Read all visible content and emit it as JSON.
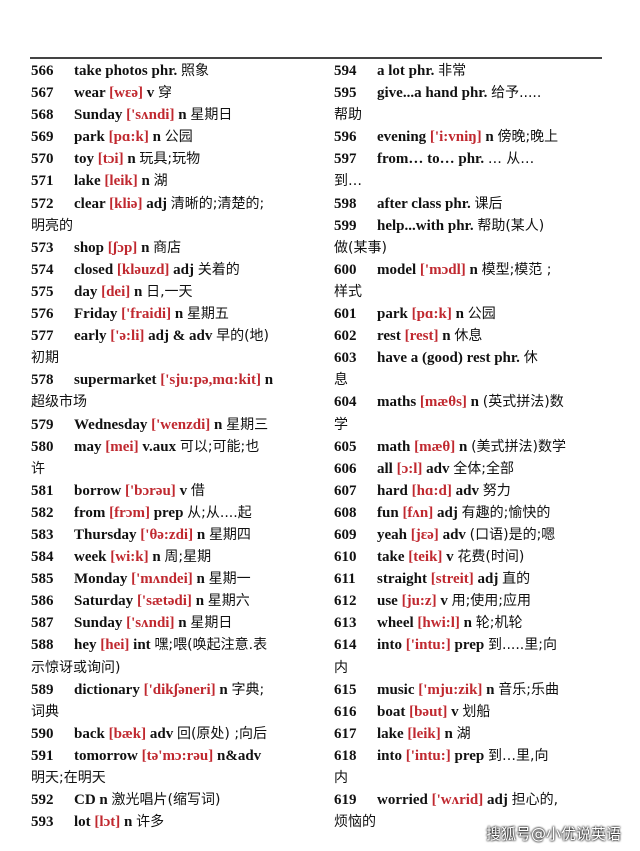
{
  "columns": {
    "left": [
      {
        "num": "566",
        "word": "take photos",
        "ipa": "",
        "pos": "phr.",
        "meaning": "照象"
      },
      {
        "num": "567",
        "word": "wear",
        "ipa": "[wɛə]",
        "pos": "v",
        "meaning": "穿"
      },
      {
        "num": "568",
        "word": "Sunday",
        "ipa": "['sʌndi]",
        "pos": "n",
        "meaning": "星期日"
      },
      {
        "num": "569",
        "word": "park",
        "ipa": "[pɑ:k]",
        "pos": "n",
        "meaning": "公园"
      },
      {
        "num": "570",
        "word": "toy",
        "ipa": "[tɔi]",
        "pos": "n",
        "meaning": "玩具;玩物"
      },
      {
        "num": "571",
        "word": "lake",
        "ipa": "[leik]",
        "pos": "n",
        "meaning": "湖"
      },
      {
        "num": "572",
        "word": "clear",
        "ipa": "[kliə]",
        "pos": "adj",
        "meaning": "清晰的;清楚的;",
        "cont": "明亮的"
      },
      {
        "num": "573",
        "word": "shop",
        "ipa": "[ʃɔp]",
        "pos": "n",
        "meaning": "商店"
      },
      {
        "num": "574",
        "word": "closed",
        "ipa": "[kləuzd]",
        "pos": "adj",
        "meaning": "关着的"
      },
      {
        "num": "575",
        "word": "day",
        "ipa": "[dei]",
        "pos": "n",
        "meaning": "日,一天"
      },
      {
        "num": "576",
        "word": "Friday",
        "ipa": "['fraidi]",
        "pos": "n",
        "meaning": "星期五"
      },
      {
        "num": "577",
        "word": "early",
        "ipa": "['ə:li]",
        "pos": "adj & adv",
        "meaning": "早的(地)",
        "cont": "初期"
      },
      {
        "num": "578",
        "word": "supermarket",
        "ipa": "['sju:pə,mɑ:kit]",
        "pos": "n",
        "meaning": "",
        "cont": "超级市场"
      },
      {
        "num": "579",
        "word": "Wednesday",
        "ipa": "['wenzdi]",
        "pos": "n",
        "meaning": "星期三"
      },
      {
        "num": "580",
        "word": "may",
        "ipa": "[mei]",
        "pos": "v.aux",
        "meaning": "可以;可能;也",
        "cont": "许"
      },
      {
        "num": "581",
        "word": "borrow",
        "ipa": "['bɔrəu]",
        "pos": "v",
        "meaning": "借"
      },
      {
        "num": "582",
        "word": "from",
        "ipa": "[frɔm]",
        "pos": "prep",
        "meaning": "从;从....起"
      },
      {
        "num": "583",
        "word": "Thursday",
        "ipa": "['θə:zdi]",
        "pos": "n",
        "meaning": "星期四"
      },
      {
        "num": "584",
        "word": "week",
        "ipa": "[wi:k]",
        "pos": "n",
        "meaning": "周;星期"
      },
      {
        "num": "585",
        "word": "Monday",
        "ipa": "['mʌndei]",
        "pos": "n",
        "meaning": "星期一"
      },
      {
        "num": "586",
        "word": "Saturday",
        "ipa": "['sætədi]",
        "pos": "n",
        "meaning": "星期六"
      },
      {
        "num": "587",
        "word": "Sunday",
        "ipa": "['sʌndi]",
        "pos": "n",
        "meaning": "星期日"
      },
      {
        "num": "588",
        "word": "hey",
        "ipa": "[hei]",
        "pos": "int",
        "meaning": "嘿;喂(唤起注意.表",
        "cont": "示惊讶或询问)"
      },
      {
        "num": "589",
        "word": "dictionary",
        "ipa": "['dikʃəneri]",
        "pos": "n",
        "meaning": "字典;",
        "cont": "词典"
      },
      {
        "num": "590",
        "word": "back",
        "ipa": "[bæk]",
        "pos": "adv",
        "meaning": "回(原处) ;向后"
      },
      {
        "num": "591",
        "word": "tomorrow",
        "ipa": "[tə'mɔ:rəu]",
        "pos": "n&adv",
        "meaning": "",
        "cont": "明天;在明天"
      },
      {
        "num": "592",
        "word": "CD",
        "ipa": "",
        "pos": "n",
        "meaning": "激光唱片(缩写词)"
      },
      {
        "num": "593",
        "word": "lot",
        "ipa": "[lɔt]",
        "pos": "n",
        "meaning": "许多"
      }
    ],
    "right": [
      {
        "num": "594",
        "word": "a lot",
        "ipa": "",
        "pos": "phr.",
        "meaning": "非常"
      },
      {
        "num": "595",
        "word": "give...a hand",
        "ipa": "",
        "pos": "phr.",
        "meaning": "给予.....",
        "cont": "帮助"
      },
      {
        "num": "596",
        "word": "evening",
        "ipa": "['i:vniŋ]",
        "pos": "n",
        "meaning": "傍晚;晚上"
      },
      {
        "num": "597",
        "word": "from… to…",
        "ipa": "",
        "pos": "phr.",
        "meaning": "… 从…",
        "cont": "到…"
      },
      {
        "num": "598",
        "word": "after class",
        "ipa": "",
        "pos": "phr.",
        "meaning": "课后"
      },
      {
        "num": "599",
        "word": "help...with",
        "ipa": "",
        "pos": "phr.",
        "meaning": "帮助(某人)",
        "cont": "做(某事)"
      },
      {
        "num": "600",
        "word": "model",
        "ipa": "['mɔdl]",
        "pos": "n",
        "meaning": "模型;模范 ;",
        "cont": "样式"
      },
      {
        "num": "601",
        "word": "park",
        "ipa": "[pɑ:k]",
        "pos": "n",
        "meaning": "公园"
      },
      {
        "num": "602",
        "word": "rest",
        "ipa": "[rest]",
        "pos": "n",
        "meaning": "休息"
      },
      {
        "num": "603",
        "word": "have a (good) rest",
        "ipa": "",
        "pos": "phr.",
        "meaning": "休",
        "cont": "息"
      },
      {
        "num": "604",
        "word": "maths",
        "ipa": "[mæθs]",
        "pos": "n",
        "meaning": "(英式拼法)数",
        "cont": "学"
      },
      {
        "num": "605",
        "word": "math",
        "ipa": "[mæθ]",
        "pos": "n",
        "meaning": "(美式拼法)数学"
      },
      {
        "num": "606",
        "word": "all",
        "ipa": "[ɔ:l]",
        "pos": "adv",
        "meaning": "全体;全部"
      },
      {
        "num": "607",
        "word": "hard",
        "ipa": "[hɑ:d]",
        "pos": "adv",
        "meaning": "努力"
      },
      {
        "num": "608",
        "word": "fun",
        "ipa": "[fʌn]",
        "pos": "adj",
        "meaning": "有趣的;愉快的"
      },
      {
        "num": "609",
        "word": "yeah",
        "ipa": "[jɛə]",
        "pos": "adv",
        "meaning": "(口语)是的;嗯"
      },
      {
        "num": "610",
        "word": "take",
        "ipa": "[teik]",
        "pos": "v",
        "meaning": "花费(时间)"
      },
      {
        "num": "611",
        "word": "straight",
        "ipa": "[streit]",
        "pos": "adj",
        "meaning": "直的"
      },
      {
        "num": "612",
        "word": "use",
        "ipa": "[ju:z]",
        "pos": "v",
        "meaning": "用;使用;应用"
      },
      {
        "num": "613",
        "word": "wheel",
        "ipa": "[hwi:l]",
        "pos": "n",
        "meaning": "轮;机轮"
      },
      {
        "num": "614",
        "word": "into",
        "ipa": "['intu:]",
        "pos": "prep",
        "meaning": "到.....里;向",
        "cont": "内"
      },
      {
        "num": "615",
        "word": "music",
        "ipa": "['mju:zik]",
        "pos": "n",
        "meaning": "音乐;乐曲"
      },
      {
        "num": "616",
        "word": "boat",
        "ipa": "[bəut]",
        "pos": "v",
        "meaning": "划船"
      },
      {
        "num": "617",
        "word": "lake",
        "ipa": "[leik]",
        "pos": "n",
        "meaning": "湖"
      },
      {
        "num": "618",
        "word": "into",
        "ipa": "['intu:]",
        "pos": "prep",
        "meaning": "到…里,向",
        "cont": "内"
      },
      {
        "num": "619",
        "word": "worried",
        "ipa": "['wʌrid]",
        "pos": "adj",
        "meaning": "担心的,",
        "cont": "烦恼的"
      }
    ]
  },
  "watermark": "搜狐号@小优说英语",
  "colors": {
    "phonetic": "#c0282f",
    "text": "#111111"
  }
}
